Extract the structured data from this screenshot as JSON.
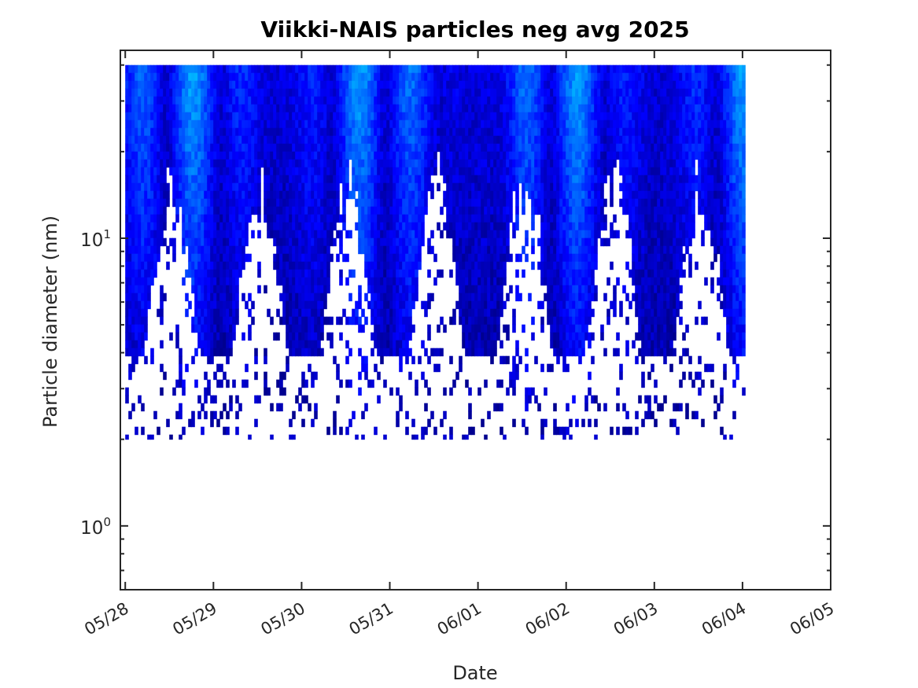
{
  "chart_data": {
    "type": "heatmap",
    "title": "Viikki-NAIS particles neg avg 2025",
    "xlabel": "Date",
    "ylabel": "Particle diameter (nm)",
    "x_ticks": [
      "05/28",
      "05/29",
      "05/30",
      "05/31",
      "06/01",
      "06/02",
      "06/03",
      "06/04",
      "06/05"
    ],
    "x_range": [
      "2025-05-27 22:40",
      "2025-06-05 00:00"
    ],
    "x_data_range": [
      "2025-05-28 00:00",
      "2025-06-04 01:00"
    ],
    "y_scale": "log",
    "y_range_nm": [
      0.6,
      45
    ],
    "y_data_range_nm": [
      2.0,
      40.0
    ],
    "y_ticks": [
      {
        "base": "10",
        "exp": "0",
        "value": 1
      },
      {
        "base": "10",
        "exp": "1",
        "value": 10
      }
    ],
    "colormap": [
      "#00008f",
      "#0000ff",
      "#0066ff",
      "#00c8ff",
      "#2affd5"
    ],
    "color_description": "Concentration shown by color: dark blue low, cyan/green high; white where below scale",
    "grid": false
  }
}
